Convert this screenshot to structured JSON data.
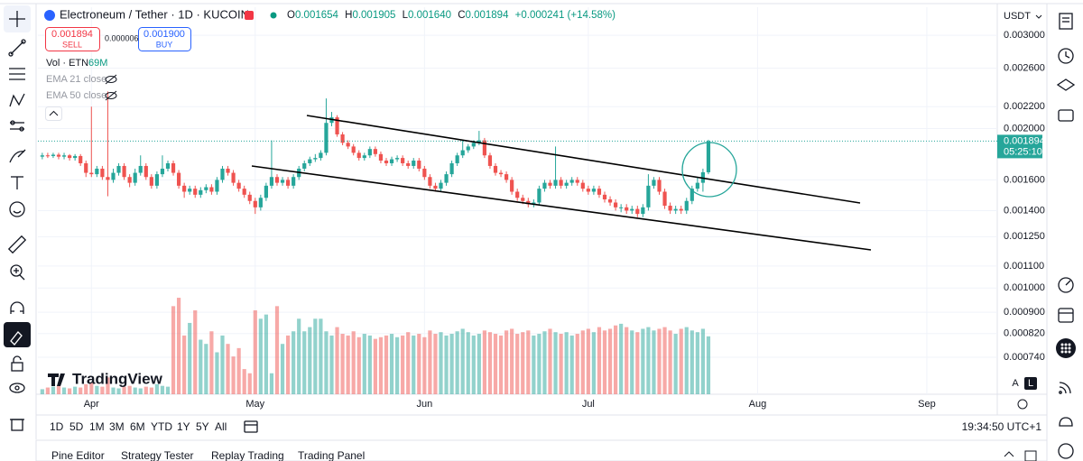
{
  "header": {
    "symbol": "Electroneum / Tether · 1D · KUCOIN",
    "ohlc": [
      {
        "key": "O",
        "value": "0.001654"
      },
      {
        "key": "H",
        "value": "0.001905"
      },
      {
        "key": "L",
        "value": "0.001640"
      },
      {
        "key": "C",
        "value": "0.001894"
      }
    ],
    "change": "+0.000241 (+14.58%)"
  },
  "trade": {
    "sell_price": "0.001894",
    "sell": "SELL",
    "spread": "0.000006",
    "buy_price": "0.001900",
    "buy": "BUY"
  },
  "indicators": {
    "volume": "Vol · ETN",
    "volume_value": "69M",
    "ema": [
      "EMA 21 close",
      "EMA 50 close"
    ]
  },
  "currency": "USDT",
  "countdown": "05:25:10",
  "brand": "TradingView",
  "scale_buttons": [
    "A",
    "L"
  ],
  "timeframes": [
    "1D",
    "5D",
    "1M",
    "3M",
    "6M",
    "YTD",
    "1Y",
    "5Y",
    "All"
  ],
  "clock": "19:34:50 UTC+1",
  "tabs": [
    "Pine Editor",
    "Strategy Tester",
    "Replay Trading",
    "Trading Panel"
  ],
  "chart_data": {
    "type": "candlestick",
    "log_scale": true,
    "grid": true,
    "up_color": "#26a69a",
    "down_color": "#ef5350",
    "ylim": [
      0.00063,
      0.00339
    ],
    "yticks": [
      {
        "value": 0.003,
        "label": "0.003000"
      },
      {
        "value": 0.0026,
        "label": "0.002600"
      },
      {
        "value": 0.0022,
        "label": "0.002200"
      },
      {
        "value": 0.002,
        "label": "0.002000"
      },
      {
        "value": 0.0016,
        "label": "0.001600"
      },
      {
        "value": 0.0014,
        "label": "0.001400"
      },
      {
        "value": 0.00125,
        "label": "0.001250"
      },
      {
        "value": 0.0011,
        "label": "0.001100"
      },
      {
        "value": 0.001,
        "label": "0.001000"
      },
      {
        "value": 0.0009,
        "label": "0.000900"
      },
      {
        "value": 0.00082,
        "label": "0.000820"
      },
      {
        "value": 0.00074,
        "label": "0.000740"
      }
    ],
    "xlim": [
      -0.8,
      174.9
    ],
    "xticks": [
      {
        "value": 9,
        "label": "Apr"
      },
      {
        "value": 39,
        "label": "May"
      },
      {
        "value": 70,
        "label": "Jun"
      },
      {
        "value": 100,
        "label": "Jul"
      },
      {
        "value": 131,
        "label": "Aug"
      },
      {
        "value": 162,
        "label": "Sep"
      }
    ],
    "open": [
      0.00177,
      0.00178,
      0.001775,
      0.001785,
      0.00177,
      0.00178,
      0.00176,
      0.001775,
      0.00172,
      0.00165,
      0.00164,
      0.00168,
      0.00162,
      0.0016,
      0.00165,
      0.0017,
      0.00162,
      0.00158,
      0.00165,
      0.0017,
      0.00162,
      0.00156,
      0.00164,
      0.00168,
      0.00172,
      0.00165,
      0.00156,
      0.00152,
      0.00154,
      0.0015,
      0.00153,
      0.00155,
      0.00152,
      0.0016,
      0.00168,
      0.00165,
      0.00158,
      0.00154,
      0.0015,
      0.00146,
      0.00142,
      0.00148,
      0.00156,
      0.00162,
      0.00158,
      0.0016,
      0.00156,
      0.00162,
      0.00168,
      0.00172,
      0.00175,
      0.00176,
      0.0018,
      0.00205,
      0.0021,
      0.00195,
      0.00188,
      0.00185,
      0.0018,
      0.00176,
      0.00178,
      0.00183,
      0.00179,
      0.00174,
      0.00172,
      0.00175,
      0.00176,
      0.00172,
      0.0017,
      0.00174,
      0.00168,
      0.00162,
      0.00156,
      0.00154,
      0.00158,
      0.00164,
      0.00172,
      0.00178,
      0.00182,
      0.00185,
      0.00188,
      0.0019,
      0.00178,
      0.0017,
      0.00165,
      0.00164,
      0.0016,
      0.00152,
      0.00148,
      0.00146,
      0.00144,
      0.00145,
      0.00154,
      0.00158,
      0.00156,
      0.0016,
      0.00156,
      0.00158,
      0.0016,
      0.00158,
      0.00154,
      0.00152,
      0.00154,
      0.0015,
      0.00147,
      0.00145,
      0.00142,
      0.00142,
      0.0014,
      0.00141,
      0.00138,
      0.00142,
      0.00156,
      0.0016,
      0.00152,
      0.00143,
      0.0014,
      0.00141,
      0.0014,
      0.00146,
      0.00154,
      0.00158,
      0.001654
    ],
    "high": [
      0.0018,
      0.0018,
      0.0018,
      0.0018,
      0.0018,
      0.00179,
      0.00179,
      0.00179,
      0.00174,
      0.0022,
      0.0017,
      0.0017,
      0.00235,
      0.00168,
      0.00172,
      0.00172,
      0.00164,
      0.00168,
      0.00178,
      0.00172,
      0.00164,
      0.00166,
      0.00178,
      0.00174,
      0.00174,
      0.00167,
      0.00158,
      0.00156,
      0.00156,
      0.00155,
      0.00157,
      0.00157,
      0.00162,
      0.0017,
      0.0017,
      0.00167,
      0.0016,
      0.00156,
      0.00152,
      0.00148,
      0.0015,
      0.00158,
      0.0019,
      0.00164,
      0.00162,
      0.00162,
      0.00164,
      0.0017,
      0.00174,
      0.00177,
      0.00179,
      0.00182,
      0.00228,
      0.00215,
      0.00212,
      0.00197,
      0.0019,
      0.00187,
      0.00182,
      0.0018,
      0.00185,
      0.00185,
      0.00181,
      0.00176,
      0.00177,
      0.00178,
      0.00178,
      0.00174,
      0.00176,
      0.00176,
      0.0017,
      0.00164,
      0.00158,
      0.0016,
      0.00166,
      0.00174,
      0.0018,
      0.0019,
      0.00187,
      0.0019,
      0.00198,
      0.00192,
      0.0018,
      0.00172,
      0.00167,
      0.00166,
      0.00162,
      0.00154,
      0.0015,
      0.00148,
      0.00147,
      0.00156,
      0.0016,
      0.0016,
      0.00185,
      0.00162,
      0.0016,
      0.00162,
      0.00162,
      0.0016,
      0.00156,
      0.00156,
      0.00156,
      0.00152,
      0.00149,
      0.00147,
      0.00144,
      0.00144,
      0.00143,
      0.00143,
      0.00144,
      0.00164,
      0.00162,
      0.00162,
      0.00154,
      0.00145,
      0.00143,
      0.00143,
      0.00148,
      0.00156,
      0.00162,
      0.00168,
      0.001905
    ],
    "low": [
      0.00175,
      0.00176,
      0.00176,
      0.00175,
      0.00175,
      0.00174,
      0.00174,
      0.0017,
      0.00162,
      0.00162,
      0.00162,
      0.0016,
      0.00149,
      0.00158,
      0.00163,
      0.0016,
      0.00155,
      0.00156,
      0.00163,
      0.0016,
      0.00154,
      0.00154,
      0.00162,
      0.00166,
      0.00163,
      0.00154,
      0.00148,
      0.0015,
      0.00148,
      0.00148,
      0.00151,
      0.0015,
      0.0015,
      0.00158,
      0.00163,
      0.00156,
      0.00152,
      0.00148,
      0.00144,
      0.00138,
      0.0014,
      0.00146,
      0.00154,
      0.00156,
      0.00156,
      0.00154,
      0.00154,
      0.0016,
      0.00166,
      0.0017,
      0.00173,
      0.00174,
      0.00178,
      0.00202,
      0.00193,
      0.00186,
      0.00183,
      0.00178,
      0.00174,
      0.00174,
      0.00176,
      0.00177,
      0.00172,
      0.0017,
      0.0017,
      0.00173,
      0.0017,
      0.00168,
      0.00168,
      0.00166,
      0.0016,
      0.00154,
      0.00152,
      0.00152,
      0.00156,
      0.00162,
      0.0017,
      0.00176,
      0.0018,
      0.00183,
      0.00186,
      0.00176,
      0.00168,
      0.00163,
      0.00162,
      0.00158,
      0.0015,
      0.00146,
      0.00144,
      0.00142,
      0.00142,
      0.00143,
      0.00152,
      0.00154,
      0.00154,
      0.00154,
      0.00154,
      0.00156,
      0.00156,
      0.00152,
      0.0015,
      0.0015,
      0.00148,
      0.00145,
      0.00143,
      0.0014,
      0.00139,
      0.00138,
      0.00138,
      0.00136,
      0.00136,
      0.0014,
      0.00154,
      0.0015,
      0.00141,
      0.00138,
      0.00138,
      0.00138,
      0.00138,
      0.00144,
      0.00152,
      0.00152,
      0.00164
    ],
    "close": [
      0.00178,
      0.001775,
      0.001785,
      0.00177,
      0.00178,
      0.00176,
      0.001775,
      0.00172,
      0.00165,
      0.00164,
      0.00168,
      0.00162,
      0.0016,
      0.00165,
      0.0017,
      0.00162,
      0.00158,
      0.00165,
      0.0017,
      0.00162,
      0.00156,
      0.00164,
      0.00168,
      0.00172,
      0.00165,
      0.00156,
      0.00152,
      0.00154,
      0.0015,
      0.00153,
      0.00155,
      0.00152,
      0.0016,
      0.00168,
      0.00165,
      0.00158,
      0.00154,
      0.0015,
      0.00146,
      0.00142,
      0.00148,
      0.00156,
      0.00162,
      0.00158,
      0.0016,
      0.00156,
      0.00162,
      0.00168,
      0.00172,
      0.00175,
      0.00176,
      0.0018,
      0.00205,
      0.0021,
      0.00195,
      0.00188,
      0.00185,
      0.0018,
      0.00176,
      0.00178,
      0.00183,
      0.00179,
      0.00174,
      0.00172,
      0.00175,
      0.00176,
      0.00172,
      0.0017,
      0.00174,
      0.00168,
      0.00162,
      0.00156,
      0.00154,
      0.00158,
      0.00164,
      0.00172,
      0.00178,
      0.00182,
      0.00185,
      0.00188,
      0.0019,
      0.00178,
      0.0017,
      0.00165,
      0.00164,
      0.0016,
      0.00152,
      0.00148,
      0.00146,
      0.00144,
      0.00145,
      0.00154,
      0.00158,
      0.00156,
      0.0016,
      0.00156,
      0.00158,
      0.0016,
      0.00158,
      0.00154,
      0.00152,
      0.00154,
      0.0015,
      0.00147,
      0.00145,
      0.00142,
      0.00142,
      0.0014,
      0.00141,
      0.00138,
      0.00142,
      0.00156,
      0.0016,
      0.00152,
      0.00143,
      0.0014,
      0.00141,
      0.0014,
      0.00146,
      0.00154,
      0.00158,
      0.001654,
      0.001894
    ],
    "volume": [
      6,
      8,
      9,
      10,
      8,
      7,
      9,
      8,
      12,
      14,
      10,
      9,
      20,
      8,
      7,
      9,
      10,
      8,
      7,
      9,
      8,
      12,
      10,
      9,
      105,
      115,
      70,
      85,
      100,
      65,
      60,
      75,
      50,
      70,
      60,
      45,
      55,
      30,
      25,
      100,
      90,
      95,
      25,
      105,
      60,
      70,
      75,
      90,
      75,
      80,
      90,
      90,
      75,
      70,
      80,
      72,
      70,
      75,
      68,
      72,
      70,
      66,
      68,
      70,
      72,
      68,
      70,
      74,
      70,
      72,
      68,
      76,
      72,
      74,
      70,
      72,
      75,
      78,
      74,
      70,
      72,
      76,
      74,
      72,
      70,
      76,
      78,
      72,
      74,
      76,
      70,
      72,
      75,
      78,
      74,
      72,
      74,
      70,
      72,
      76,
      78,
      74,
      80,
      76,
      78,
      82,
      84,
      80,
      76,
      74,
      78,
      80,
      76,
      78,
      80,
      76,
      72,
      78,
      80,
      76,
      74,
      78,
      69
    ]
  }
}
